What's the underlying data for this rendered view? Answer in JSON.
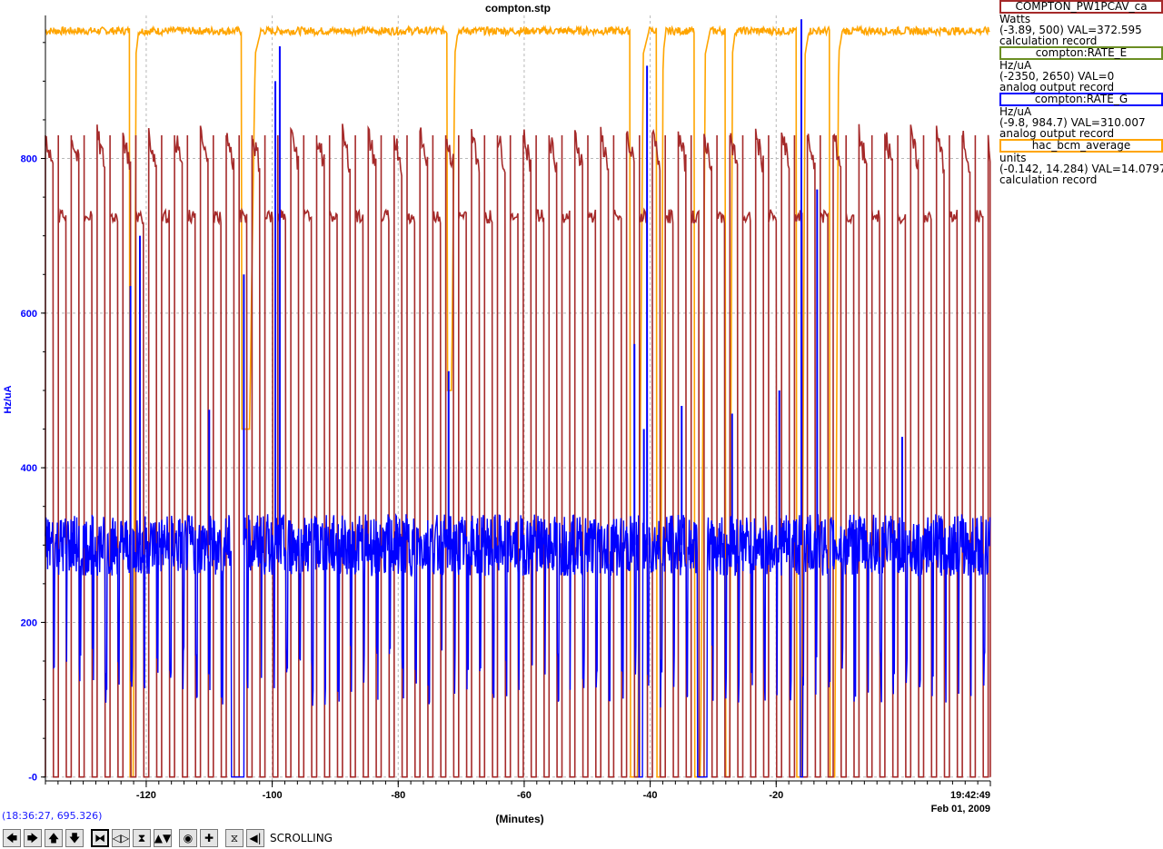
{
  "title": "compton.stp",
  "chart_data": {
    "type": "line",
    "title": "compton.stp",
    "xlabel": "(Minutes)",
    "ylabel": "Hz/uA",
    "xlim": [
      -136,
      14
    ],
    "ylim": [
      -5,
      985
    ],
    "x_ticks": [
      -120,
      -100,
      -80,
      -60,
      -40,
      -20
    ],
    "x_tick_labels": [
      "-120",
      "-100",
      "-80",
      "-60",
      "-40",
      "-20"
    ],
    "y_ticks": [
      0,
      200,
      400,
      600,
      800
    ],
    "y_tick_labels": [
      "-0",
      "200",
      "400",
      "600",
      "800"
    ],
    "grid": true,
    "end_time": "19:42:49",
    "end_date": "Feb 01, 2009",
    "legend_placement": "right",
    "series": [
      {
        "name": "COMPTON_PW1PCAV_ca",
        "color": "#a52a2a",
        "range": "(-3.89, 500) VAL=372.595",
        "units": "Watts",
        "record_type": "calculation record",
        "cycle_period_min": 2.05,
        "on_fraction": 0.62,
        "on_level": 725,
        "on_peak": 830,
        "off_level": 0,
        "axis_range": [
          -3.89,
          500
        ]
      },
      {
        "name": "compton:RATE_E",
        "color": "#6b8e23",
        "range": "(-2350, 2650) VAL=0",
        "units": "Hz/uA",
        "record_type": "analog output record",
        "values_constant": 0,
        "axis_range": [
          -2350,
          2650
        ]
      },
      {
        "name": "compton:RATE_G",
        "color": "#0000ff",
        "range": "(-9.8, 984.7) VAL=310.007",
        "units": "Hz/uA",
        "record_type": "analog output record",
        "baseline": 300,
        "noise": 40,
        "dip_level": 130,
        "axis_range": [
          -9.8,
          984.7
        ],
        "spikes": [
          {
            "x": -122.5,
            "y": 635
          },
          {
            "x": -121.0,
            "y": 700
          },
          {
            "x": -110.0,
            "y": 475
          },
          {
            "x": -104.5,
            "y": 650
          },
          {
            "x": -99.5,
            "y": 900
          },
          {
            "x": -98.8,
            "y": 945
          },
          {
            "x": -72.0,
            "y": 525
          },
          {
            "x": -42.5,
            "y": 560
          },
          {
            "x": -41.0,
            "y": 450
          },
          {
            "x": -40.5,
            "y": 920
          },
          {
            "x": -35.0,
            "y": 480
          },
          {
            "x": -27.0,
            "y": 470
          },
          {
            "x": -19.5,
            "y": 500
          },
          {
            "x": -16.0,
            "y": 980
          },
          {
            "x": -13.5,
            "y": 760
          },
          {
            "x": 0.0,
            "y": 440
          }
        ],
        "zero_dropouts": [
          [
            -106.5,
            -104.5
          ],
          [
            -41.8,
            -41.2
          ],
          [
            -32.5,
            -31.0
          ],
          [
            -16.2,
            -15.8
          ]
        ]
      },
      {
        "name": "hac_bcm_average",
        "color": "#ffa500",
        "range": "(-0.142, 14.284) VAL=14.0797",
        "units": "units",
        "record_type": "calculation record",
        "level": 965,
        "axis_range": [
          -0.142,
          14.284
        ],
        "dropouts": [
          {
            "start": -122.6,
            "end": -121.2,
            "min": 0
          },
          {
            "start": -104.8,
            "end": -101.8,
            "min": 450
          },
          {
            "start": -72.2,
            "end": -70.5,
            "min": 500
          },
          {
            "start": -43.2,
            "end": -40.2,
            "min": 0
          },
          {
            "start": -39.0,
            "end": -37.5,
            "min": 0
          },
          {
            "start": -33.0,
            "end": -30.5,
            "min": 0
          },
          {
            "start": -28.0,
            "end": -26.5,
            "min": 0
          },
          {
            "start": -16.8,
            "end": -14.8,
            "min": 0
          },
          {
            "start": -11.5,
            "end": -9.5,
            "min": 0
          }
        ]
      }
    ]
  },
  "status": {
    "coord_readout": "(18:36:27, 695.326)"
  },
  "toolbar": {
    "mode_label": "SCROLLING",
    "buttons": [
      {
        "name": "pan-left-button",
        "glyph": "🡄"
      },
      {
        "name": "pan-right-button",
        "glyph": "🡆"
      },
      {
        "name": "pan-up-button",
        "glyph": "🡅"
      },
      {
        "name": "pan-down-button",
        "glyph": "🡇"
      },
      {
        "name": "zoom-in-x-button",
        "glyph": "⧓",
        "active": true
      },
      {
        "name": "zoom-out-x-button",
        "glyph": "◁▷"
      },
      {
        "name": "zoom-in-y-button",
        "glyph": "⧗"
      },
      {
        "name": "zoom-out-y-button",
        "glyph": "▲▼"
      },
      {
        "name": "auto-scale-button",
        "glyph": "◉"
      },
      {
        "name": "add-pv-button",
        "glyph": "✚"
      },
      {
        "name": "graph-mode-button",
        "glyph": "⧖"
      },
      {
        "name": "scroll-button",
        "glyph": "◀|"
      }
    ]
  }
}
